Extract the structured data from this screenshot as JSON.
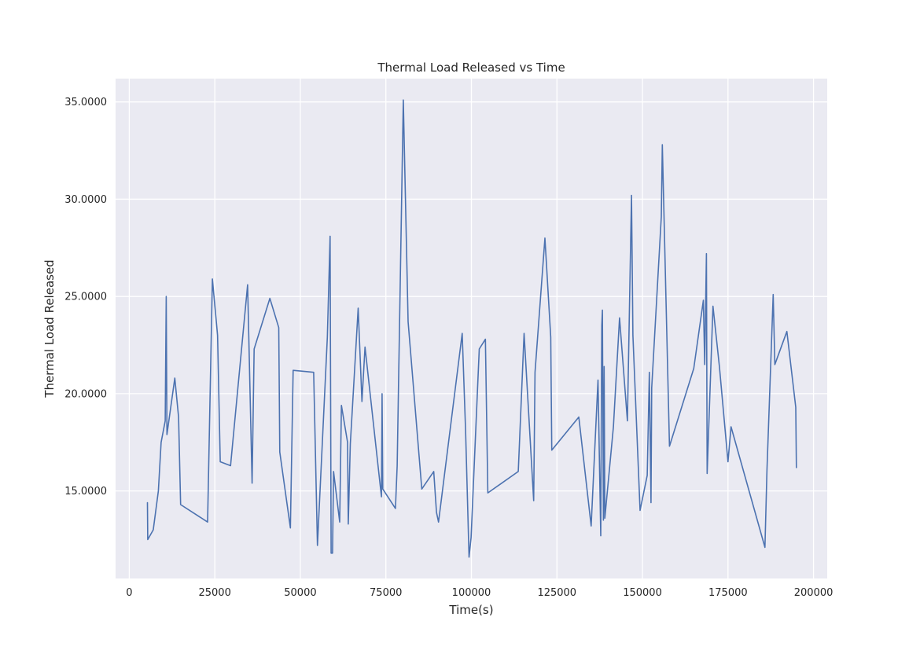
{
  "chart_data": {
    "type": "line",
    "title": "Thermal Load Released vs Time",
    "xlabel": "Time(s)",
    "ylabel": "Thermal Load Released",
    "xlim": [
      -4000,
      204000
    ],
    "ylim": [
      10.5,
      36.2
    ],
    "xticks": [
      0,
      25000,
      50000,
      75000,
      100000,
      125000,
      150000,
      175000,
      200000
    ],
    "xtick_labels": [
      "0",
      "25000",
      "50000",
      "75000",
      "100000",
      "125000",
      "150000",
      "175000",
      "200000"
    ],
    "yticks": [
      15,
      20,
      25,
      30,
      35
    ],
    "ytick_labels": [
      "15.0000",
      "20.0000",
      "25.0000",
      "30.0000",
      "35.0000"
    ],
    "grid": true,
    "background_color": "#eaeaf2",
    "series": [
      {
        "color": "#4c72b0",
        "x": [
          5300,
          5400,
          7000,
          8500,
          9300,
          10500,
          10800,
          11000,
          13300,
          14400,
          15000,
          22900,
          24300,
          25800,
          26600,
          29600,
          34600,
          35900,
          36500,
          41100,
          43700,
          44000,
          47100,
          47900,
          53900,
          55000,
          57900,
          58700,
          59000,
          59400,
          59700,
          61500,
          62000,
          63800,
          64000,
          64600,
          66900,
          68000,
          68900,
          73700,
          73900,
          74100,
          77800,
          78300,
          80100,
          81500,
          85500,
          89000,
          89800,
          90400,
          97300,
          98300,
          99300,
          99900,
          102300,
          104100,
          104800,
          113700,
          115400,
          118200,
          118600,
          121500,
          123200,
          123500,
          131400,
          135000,
          137000,
          137800,
          138100,
          138300,
          138600,
          138800,
          139000,
          141500,
          143300,
          145600,
          146800,
          147200,
          149300,
          151400,
          152000,
          152500,
          152700,
          155500,
          155800,
          157900,
          165000,
          167800,
          168200,
          168700,
          168900,
          170600,
          172500,
          175000,
          175900,
          185800,
          186400,
          188200,
          188700,
          192200,
          194800,
          195000
        ],
        "y": [
          14.4,
          12.5,
          13.0,
          15.0,
          17.5,
          18.6,
          25.0,
          17.9,
          20.8,
          18.8,
          14.3,
          13.4,
          25.9,
          23.0,
          16.5,
          16.3,
          25.6,
          15.4,
          22.3,
          24.9,
          23.4,
          17.0,
          13.1,
          21.2,
          21.1,
          12.2,
          22.9,
          28.1,
          11.8,
          11.8,
          16.0,
          13.4,
          19.4,
          17.5,
          13.3,
          17.4,
          24.4,
          19.6,
          22.4,
          14.7,
          20.0,
          15.1,
          14.1,
          16.3,
          35.1,
          23.7,
          15.1,
          16.0,
          13.9,
          13.4,
          23.1,
          18.1,
          11.6,
          12.6,
          22.3,
          22.8,
          14.9,
          16.0,
          23.1,
          14.5,
          21.1,
          28.0,
          22.9,
          17.1,
          18.8,
          13.2,
          20.7,
          12.7,
          23.5,
          24.3,
          13.5,
          21.4,
          13.6,
          18.3,
          23.9,
          18.6,
          30.2,
          23.0,
          14.0,
          15.8,
          21.1,
          14.4,
          20.3,
          29.1,
          32.8,
          17.3,
          21.3,
          24.8,
          21.5,
          27.2,
          15.9,
          24.5,
          21.4,
          16.5,
          18.3,
          12.1,
          16.1,
          25.1,
          21.5,
          23.2,
          19.3,
          16.2
        ]
      }
    ]
  }
}
